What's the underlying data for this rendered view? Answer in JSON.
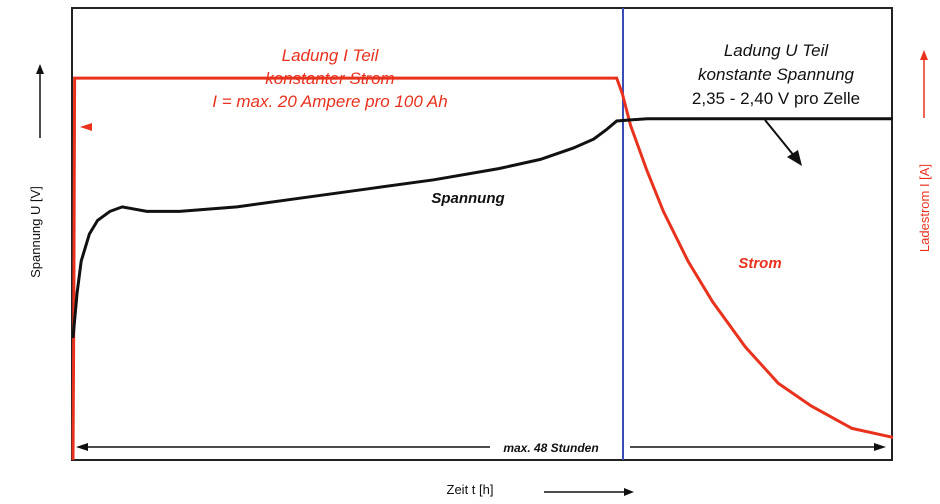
{
  "chart_data": {
    "type": "line",
    "title": "",
    "xlabel": "Zeit t [h]",
    "ylabel_left": "Spannung U [V]",
    "ylabel_right": "Ladestrom I [A]",
    "phases": [
      {
        "name": "Ladung I Teil",
        "lines": [
          "Ladung I Teil",
          "konstanter Strom",
          "I = max. 20 Ampere pro 100 Ah"
        ],
        "color": "#e8321e"
      },
      {
        "name": "Ladung U Teil",
        "lines": [
          "Ladung U Teil",
          "konstante Spannung",
          "2,35 - 2,40 V pro Zelle"
        ],
        "color": "#111111"
      }
    ],
    "duration_label": "max. 48 Stunden",
    "x_range": [
      0,
      1
    ],
    "y_range": [
      0,
      1
    ],
    "phase_boundary_x": 0.663,
    "series": [
      {
        "name": "Spannung",
        "color": "#111111",
        "x": [
          0,
          0.005,
          0.01,
          0.02,
          0.03,
          0.045,
          0.06,
          0.09,
          0.13,
          0.2,
          0.28,
          0.36,
          0.44,
          0.52,
          0.57,
          0.61,
          0.635,
          0.65,
          0.663,
          0.7,
          0.8,
          0.9,
          1.0
        ],
        "y": [
          0.27,
          0.37,
          0.44,
          0.5,
          0.53,
          0.55,
          0.56,
          0.55,
          0.55,
          0.56,
          0.58,
          0.6,
          0.62,
          0.645,
          0.665,
          0.69,
          0.71,
          0.73,
          0.75,
          0.755,
          0.755,
          0.755,
          0.755
        ]
      },
      {
        "name": "Strom",
        "color": "#e8321e",
        "x": [
          0,
          0.001,
          0.002,
          0.663,
          0.67,
          0.68,
          0.7,
          0.72,
          0.75,
          0.78,
          0.82,
          0.86,
          0.9,
          0.95,
          1.0
        ],
        "y": [
          0,
          0.32,
          0.845,
          0.845,
          0.81,
          0.74,
          0.64,
          0.55,
          0.44,
          0.35,
          0.25,
          0.17,
          0.12,
          0.07,
          0.05
        ]
      }
    ],
    "grid": false,
    "legend": "none"
  }
}
